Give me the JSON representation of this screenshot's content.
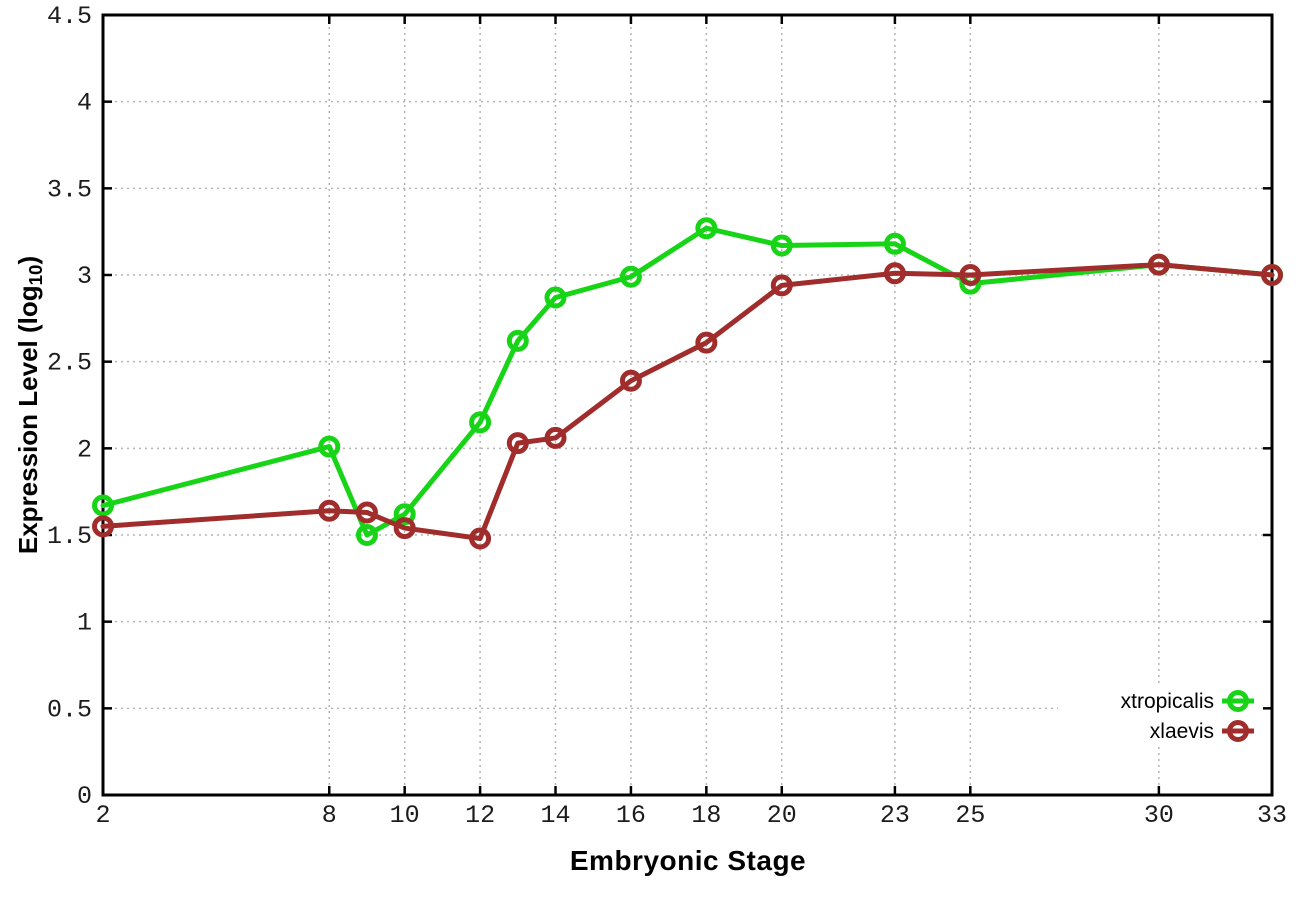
{
  "chart_data": {
    "type": "line",
    "title": "",
    "xlabel": "Embryonic Stage",
    "ylabel": "Expression Level (log10)",
    "ylabel_parts": {
      "prefix": "Expression Level (log",
      "sub": "10",
      "suffix": ")"
    },
    "xlim": [
      2,
      33
    ],
    "ylim": [
      0,
      4.5
    ],
    "grid": true,
    "legend_position": "inside-bottom-right",
    "marker": "open-circle",
    "x_ticks": [
      2,
      8,
      10,
      12,
      14,
      16,
      18,
      20,
      23,
      25,
      30,
      33
    ],
    "x_tick_labels": [
      "2",
      "8",
      "10",
      "12",
      "14",
      "16",
      "18",
      "20",
      "23",
      "25",
      "30",
      "33"
    ],
    "y_ticks": [
      0,
      0.5,
      1,
      1.5,
      2,
      2.5,
      3,
      3.5,
      4,
      4.5
    ],
    "y_tick_labels": [
      "0",
      "0.5",
      "1",
      "1.5",
      "2",
      "2.5",
      "3",
      "3.5",
      "4",
      "4.5"
    ],
    "x": [
      2,
      8,
      9,
      10,
      12,
      13,
      14,
      16,
      18,
      20,
      23,
      25,
      30,
      33
    ],
    "series": [
      {
        "name": "xtropicalis",
        "color": "#17d417",
        "values": [
          1.67,
          2.01,
          1.5,
          1.62,
          2.15,
          2.62,
          2.87,
          2.99,
          3.27,
          3.17,
          3.18,
          2.95,
          3.06,
          3.0
        ]
      },
      {
        "name": "xlaevis",
        "color": "#a02c2c",
        "values": [
          1.55,
          1.64,
          1.63,
          1.54,
          1.48,
          2.03,
          2.06,
          2.39,
          2.61,
          2.94,
          3.01,
          3.0,
          3.06,
          3.0
        ]
      }
    ],
    "colors": {
      "background": "#ffffff",
      "frame": "#000000",
      "grid": "#b4b4b4",
      "tick_label": "#1c1c1c",
      "legend_text": "#000000"
    }
  }
}
